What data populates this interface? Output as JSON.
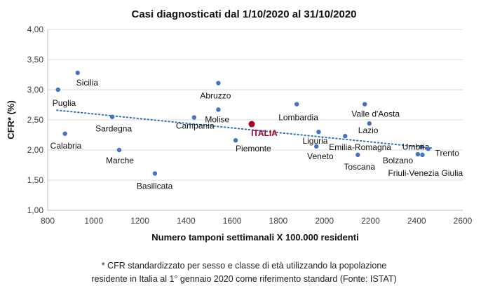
{
  "chart_data": {
    "type": "scatter",
    "title": "Casi diagnosticati dal 1/10/2020 al 31/10/2020",
    "xlabel": "Numero tamponi settimanali X 100.000 residenti",
    "ylabel": "CFR* (%)",
    "xlim": [
      800,
      2600
    ],
    "ylim": [
      1.0,
      4.0
    ],
    "x_ticks": [
      "800",
      "1000",
      "1200",
      "1400",
      "1600",
      "1800",
      "2000",
      "2200",
      "2400",
      "2600"
    ],
    "y_ticks": [
      "1,00",
      "1,50",
      "2,00",
      "2,50",
      "3,00",
      "3,50",
      "4,00"
    ],
    "grid": "horizontal",
    "trendline": {
      "style": "dotted",
      "color": "#2e75b6",
      "x": [
        840,
        2470
      ],
      "y": [
        2.66,
        2.03
      ]
    },
    "series": [
      {
        "color": "#4472c4",
        "points": [
          {
            "label": "Sicilia",
            "x": 930,
            "y": 3.28
          },
          {
            "label": "Puglia",
            "x": 845,
            "y": 3.0
          },
          {
            "label": "Calabria",
            "x": 875,
            "y": 2.27
          },
          {
            "label": "Sardegna",
            "x": 1080,
            "y": 2.55
          },
          {
            "label": "Marche",
            "x": 1110,
            "y": 2.0
          },
          {
            "label": "Basilicata",
            "x": 1265,
            "y": 1.61
          },
          {
            "label": "Campania",
            "x": 1435,
            "y": 2.54
          },
          {
            "label": "Abruzzo",
            "x": 1540,
            "y": 3.11
          },
          {
            "label": "Molise",
            "x": 1540,
            "y": 2.67
          },
          {
            "label": "Piemonte",
            "x": 1615,
            "y": 2.16
          },
          {
            "label": "Lombardia",
            "x": 1880,
            "y": 2.76
          },
          {
            "label": "Liguria",
            "x": 1975,
            "y": 2.3
          },
          {
            "label": "Veneto",
            "x": 1965,
            "y": 2.06
          },
          {
            "label": "Emilia-Romagna",
            "x": 2090,
            "y": 2.23
          },
          {
            "label": "Toscana",
            "x": 2145,
            "y": 1.92
          },
          {
            "label": "Valle d'Aosta",
            "x": 2175,
            "y": 2.76
          },
          {
            "label": "Lazio",
            "x": 2195,
            "y": 2.44
          },
          {
            "label": "Umbria",
            "x": 2420,
            "y": 2.05
          },
          {
            "label": "Bolzano",
            "x": 2405,
            "y": 1.93
          },
          {
            "label": "Friuli-Venezia Giulia",
            "x": 2425,
            "y": 1.92
          },
          {
            "label": "Trento",
            "x": 2450,
            "y": 2.02
          }
        ]
      },
      {
        "color": "#a50021",
        "points": [
          {
            "label": "ITALIA",
            "x": 1685,
            "y": 2.43
          }
        ]
      }
    ]
  },
  "footnote": {
    "line1": "* CFR standardizzato per sesso e classe di età utilizzando la popolazione",
    "line2": "residente in Italia al 1° gennaio 2020 come riferimento standard (Fonte: ISTAT)"
  }
}
